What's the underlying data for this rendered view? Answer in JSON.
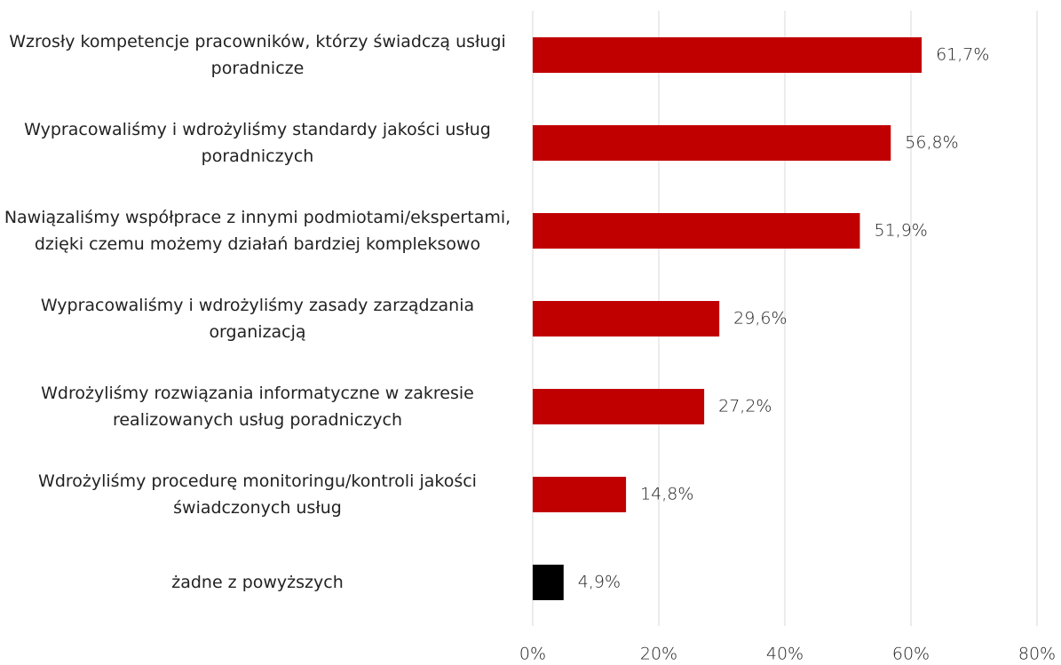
{
  "chart_data": {
    "type": "bar",
    "orientation": "horizontal",
    "categories": [
      "Wzrosły kompetencje pracowników, którzy świadczą usługi poradnicze",
      "Wypracowaliśmy i wdrożyliśmy standardy jakości usług poradniczych",
      "Nawiązaliśmy współprace z innymi podmiotami/ekspertami, dzięki czemu możemy działań bardziej kompleksowo",
      "Wypracowaliśmy i wdrożyliśmy zasady zarządzania organizacją",
      "Wdrożyliśmy rozwiązania informatyczne w zakresie realizowanych usług poradniczych",
      "Wdrożyliśmy procedurę monitoringu/kontroli jakości świadczonych usług",
      "żadne z powyższych"
    ],
    "values": [
      61.7,
      56.8,
      51.9,
      29.6,
      27.2,
      14.8,
      4.9
    ],
    "value_labels": [
      "61,7%",
      "56,8%",
      "51,9%",
      "29,6%",
      "27,2%",
      "14,8%",
      "4,9%"
    ],
    "colors": [
      "#c00000",
      "#c00000",
      "#c00000",
      "#c00000",
      "#c00000",
      "#c00000",
      "#000000"
    ],
    "xlim": [
      0,
      80
    ],
    "xticks": [
      {
        "value": 0,
        "label": "0%"
      },
      {
        "value": 20,
        "label": "20%"
      },
      {
        "value": 40,
        "label": "40%"
      },
      {
        "value": 60,
        "label": "60%"
      },
      {
        "value": 80,
        "label": "80%"
      }
    ],
    "grid": true
  }
}
